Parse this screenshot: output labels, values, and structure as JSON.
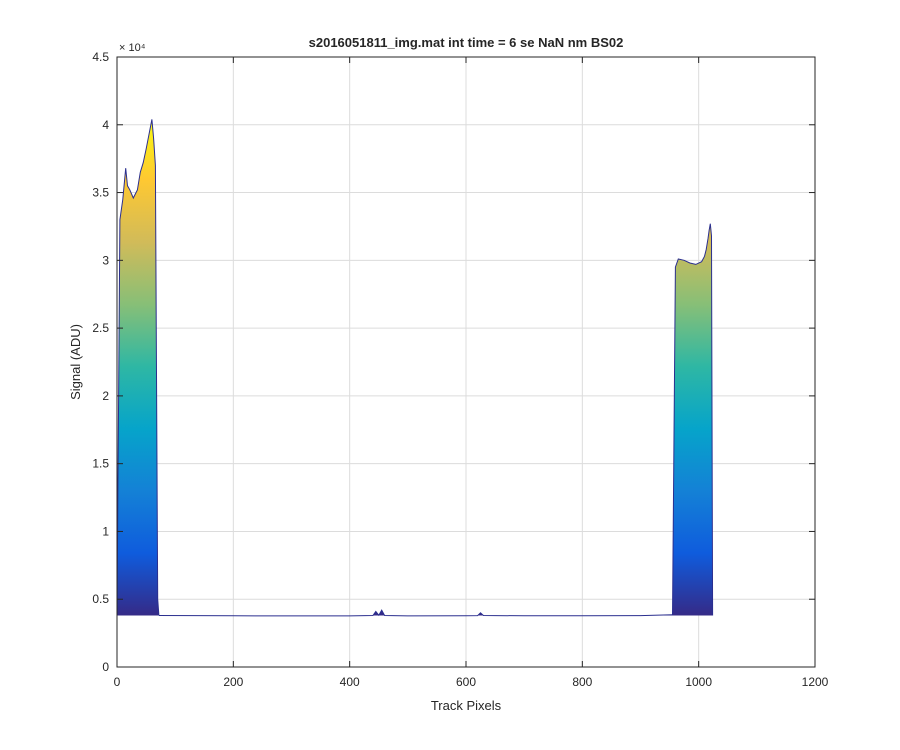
{
  "chart_data": {
    "type": "area",
    "title": "s2016051811_img.mat int time = 6 se  NaN nm BS02",
    "xlabel": "Track Pixels",
    "ylabel": "Signal (ADU)",
    "y_exponent_label": "× 10⁴",
    "xlim": [
      0,
      1200
    ],
    "ylim": [
      0,
      45000
    ],
    "xticks": [
      0,
      200,
      400,
      600,
      800,
      1000,
      1200
    ],
    "xtick_labels": [
      "0",
      "200",
      "400",
      "600",
      "800",
      "1000",
      "1200"
    ],
    "yticks": [
      0,
      5000,
      10000,
      15000,
      20000,
      25000,
      30000,
      35000,
      40000,
      45000
    ],
    "ytick_labels": [
      "0",
      "0.5",
      "1",
      "1.5",
      "2",
      "2.5",
      "3",
      "3.5",
      "4",
      "4.5"
    ],
    "grid": true,
    "colormap": [
      "#352a87",
      "#0f5cdd",
      "#1481d6",
      "#06a4ca",
      "#2eb7a4",
      "#87bf77",
      "#d1bb59",
      "#fec832",
      "#f9fb0e"
    ],
    "baseline": 3800,
    "series": [
      {
        "x": [
          0,
          5,
          10,
          15,
          18,
          22,
          28,
          35,
          40,
          45,
          50,
          55,
          60,
          63,
          66,
          70,
          72
        ],
        "y": [
          3800,
          33000,
          34500,
          36800,
          35500,
          35200,
          34600,
          35200,
          36500,
          37200,
          38200,
          39300,
          40400,
          39000,
          37000,
          5000,
          3800
        ]
      },
      {
        "x": [
          72,
          200,
          300,
          400,
          440,
          445,
          450,
          455,
          460,
          500,
          600,
          620,
          625,
          630,
          700,
          800,
          900,
          955
        ],
        "y": [
          3800,
          3780,
          3770,
          3770,
          3800,
          4100,
          3820,
          4200,
          3800,
          3770,
          3780,
          3790,
          4000,
          3800,
          3780,
          3780,
          3790,
          3850
        ]
      },
      {
        "x": [
          955,
          960,
          965,
          975,
          985,
          995,
          1005,
          1010,
          1013,
          1016,
          1018,
          1020,
          1022,
          1024
        ],
        "y": [
          3850,
          29500,
          30100,
          30000,
          29800,
          29700,
          29900,
          30300,
          30800,
          31600,
          32200,
          32700,
          31800,
          3800
        ]
      }
    ]
  }
}
